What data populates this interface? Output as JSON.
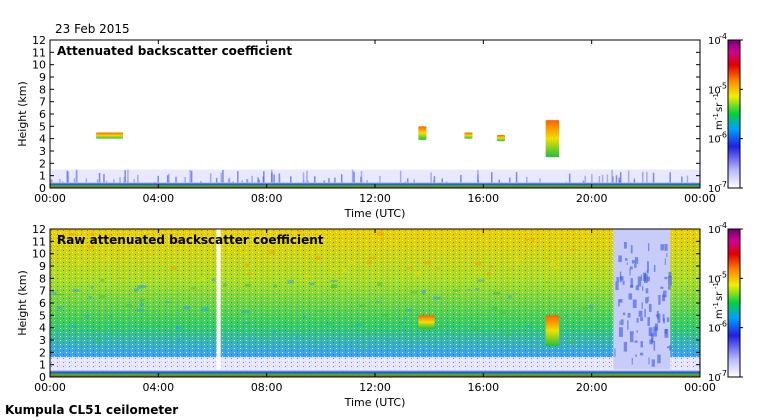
{
  "header": {
    "date": "23 Feb 2015"
  },
  "footer": {
    "station": "Kumpula CL51 ceilometer"
  },
  "chart_data": [
    {
      "type": "heatmap",
      "title": "Attenuated backscatter coefficient",
      "xlabel": "Time (UTC)",
      "ylabel": "Height (km)",
      "x_ticks": [
        "00:00",
        "04:00",
        "08:00",
        "12:00",
        "16:00",
        "20:00",
        "00:00"
      ],
      "x_range_hours": [
        0,
        24
      ],
      "y_ticks": [
        "0",
        "1",
        "2",
        "3",
        "4",
        "5",
        "6",
        "7",
        "8",
        "9",
        "10",
        "11",
        "12"
      ],
      "ylim_km": [
        0,
        12
      ],
      "colorbar": {
        "scale": "log",
        "range": [
          1e-07,
          0.0001
        ],
        "tick_labels": [
          "10",
          "10",
          "10",
          "10"
        ],
        "tick_exponents": [
          "-7",
          "-6",
          "-5",
          "-4"
        ],
        "unit": "m",
        "unit_exp_1": "-1",
        "unit_sr": "sr",
        "unit_exp_2": "-1"
      },
      "features": [
        {
          "kind": "boundary_layer",
          "start_h": 0,
          "end_h": 24,
          "top_km": 1.5
        },
        {
          "kind": "cloud",
          "start_h": 1.7,
          "end_h": 2.7,
          "base_km": 4.0,
          "top_km": 4.5
        },
        {
          "kind": "cloud",
          "start_h": 13.6,
          "end_h": 13.9,
          "base_km": 3.9,
          "top_km": 5.0
        },
        {
          "kind": "cloud",
          "start_h": 15.3,
          "end_h": 15.6,
          "base_km": 4.0,
          "top_km": 4.5
        },
        {
          "kind": "cloud",
          "start_h": 16.5,
          "end_h": 16.8,
          "base_km": 3.8,
          "top_km": 4.3
        },
        {
          "kind": "cloud",
          "start_h": 18.3,
          "end_h": 18.8,
          "base_km": 2.5,
          "top_km": 5.5
        }
      ]
    },
    {
      "type": "heatmap",
      "title": "Raw attenuated backscatter coefficient",
      "xlabel": "Time (UTC)",
      "ylabel": "Height (km)",
      "x_ticks": [
        "00:00",
        "04:00",
        "08:00",
        "12:00",
        "16:00",
        "20:00",
        "00:00"
      ],
      "x_range_hours": [
        0,
        24
      ],
      "y_ticks": [
        "0",
        "1",
        "2",
        "3",
        "4",
        "5",
        "6",
        "7",
        "8",
        "9",
        "10",
        "11",
        "12"
      ],
      "ylim_km": [
        0,
        12
      ],
      "colorbar": {
        "scale": "log",
        "range": [
          1e-07,
          0.0001
        ],
        "tick_labels": [
          "10",
          "10",
          "10",
          "10"
        ],
        "tick_exponents": [
          "-7",
          "-6",
          "-5",
          "-4"
        ],
        "unit": "m",
        "unit_exp_1": "-1",
        "unit_sr": "sr",
        "unit_exp_2": "-1"
      },
      "features": [
        {
          "kind": "data_gap",
          "start_h": 6.15,
          "end_h": 6.3
        },
        {
          "kind": "low_noise_region",
          "start_h": 20.8,
          "end_h": 22.9
        },
        {
          "kind": "cloud",
          "start_h": 13.6,
          "end_h": 14.2,
          "base_km": 3.9,
          "top_km": 5.0
        },
        {
          "kind": "cloud",
          "start_h": 18.3,
          "end_h": 18.8,
          "base_km": 2.5,
          "top_km": 5.0
        }
      ]
    }
  ]
}
